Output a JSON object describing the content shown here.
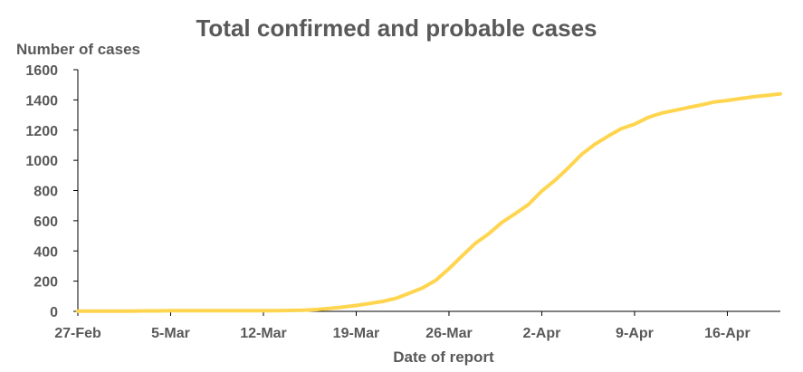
{
  "chart_data": {
    "type": "line",
    "title": "Total confirmed and probable cases",
    "xlabel": "Date of report",
    "ylabel": "Number of cases",
    "ylim": [
      0,
      1600
    ],
    "yticks": [
      "0",
      "200",
      "400",
      "600",
      "800",
      "1000",
      "1200",
      "1400",
      "1600"
    ],
    "xticks": [
      "27-Feb",
      "5-Mar",
      "12-Mar",
      "19-Mar",
      "26-Mar",
      "2-Apr",
      "9-Apr",
      "16-Apr"
    ],
    "grid": false,
    "legend": "none",
    "line_color": "#FFD54F",
    "series": [
      {
        "x": [
          "27-Feb",
          "28-Feb",
          "29-Feb",
          "1-Mar",
          "2-Mar",
          "3-Mar",
          "4-Mar",
          "5-Mar",
          "6-Mar",
          "7-Mar",
          "8-Mar",
          "9-Mar",
          "10-Mar",
          "11-Mar",
          "12-Mar",
          "13-Mar",
          "14-Mar",
          "15-Mar",
          "16-Mar",
          "17-Mar",
          "18-Mar",
          "19-Mar",
          "20-Mar",
          "21-Mar",
          "22-Mar",
          "23-Mar",
          "24-Mar",
          "25-Mar",
          "26-Mar",
          "27-Mar",
          "28-Mar",
          "29-Mar",
          "30-Mar",
          "31-Mar",
          "1-Apr",
          "2-Apr",
          "3-Apr",
          "4-Apr",
          "5-Apr",
          "6-Apr",
          "7-Apr",
          "8-Apr",
          "9-Apr",
          "10-Apr",
          "11-Apr",
          "12-Apr",
          "13-Apr",
          "14-Apr",
          "15-Apr",
          "16-Apr",
          "17-Apr",
          "18-Apr",
          "19-Apr",
          "20-Apr"
        ],
        "values": [
          1,
          1,
          1,
          1,
          2,
          3,
          3,
          5,
          5,
          5,
          5,
          5,
          5,
          5,
          5,
          5,
          6,
          8,
          12,
          20,
          28,
          39,
          52,
          66,
          86,
          120,
          155,
          205,
          283,
          368,
          451,
          514,
          589,
          647,
          708,
          797,
          868,
          950,
          1039,
          1106,
          1160,
          1210,
          1239,
          1283,
          1312,
          1330,
          1349,
          1366,
          1386,
          1396,
          1409,
          1421,
          1430,
          1440
        ]
      }
    ]
  }
}
